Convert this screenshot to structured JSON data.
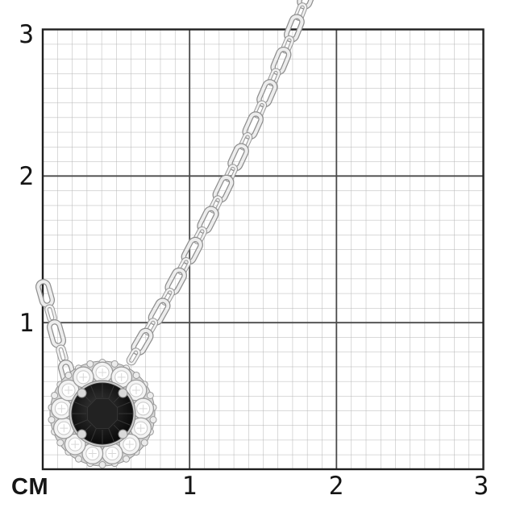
{
  "axis": {
    "unit_label": "СМ",
    "x_tick_labels": [
      "1",
      "2",
      "3"
    ],
    "y_tick_labels": [
      "3",
      "2",
      "1"
    ]
  },
  "grid": {
    "extent_cm": 3,
    "minor_per_cm": 10,
    "minor_color": "#b4b4b4",
    "major_color": "#4a4a4a",
    "border_color": "#1f1f1f",
    "background": "#ffffff"
  },
  "subject": {
    "type": "jewelry-product-photo",
    "description": "white-metal cable chain necklace with round black gemstone pendant surrounded by diamond halo cluster",
    "metal_color": "#d8d8d8",
    "halo_stone_color": "#f3f3f3",
    "center_stone_color": "#141414"
  }
}
